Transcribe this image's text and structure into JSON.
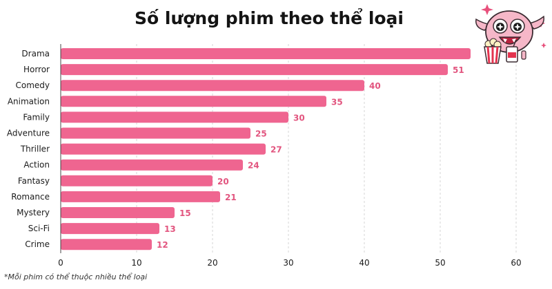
{
  "colors": {
    "bar": "#ef6590",
    "value_label": "#e2557f",
    "grid": "#d6d6d6",
    "text": "#1a1a1a"
  },
  "chart_data": {
    "type": "bar",
    "orientation": "horizontal",
    "title": "Số lượng phim theo thể loại",
    "footnote": "*Mỗi phim có thể thuộc nhiều thể loại",
    "categories": [
      "Drama",
      "Horror",
      "Comedy",
      "Animation",
      "Family",
      "Adventure",
      "Thriller",
      "Action",
      "Fantasy",
      "Romance",
      "Mystery",
      "Sci-Fi",
      "Crime"
    ],
    "values": [
      54,
      51,
      40,
      35,
      30,
      25,
      27,
      24,
      20,
      21,
      15,
      13,
      12
    ],
    "value_labels": [
      "",
      "51",
      "40",
      "35",
      "30",
      "25",
      "27",
      "24",
      "20",
      "21",
      "15",
      "13",
      "12"
    ],
    "xlim": [
      0,
      60
    ],
    "xticks": [
      0,
      10,
      20,
      30,
      40,
      50,
      60
    ],
    "xlabel": "",
    "ylabel": "",
    "grid": "vertical dashed"
  },
  "decoration": {
    "mascot_icon": "pink-creature-with-popcorn"
  }
}
